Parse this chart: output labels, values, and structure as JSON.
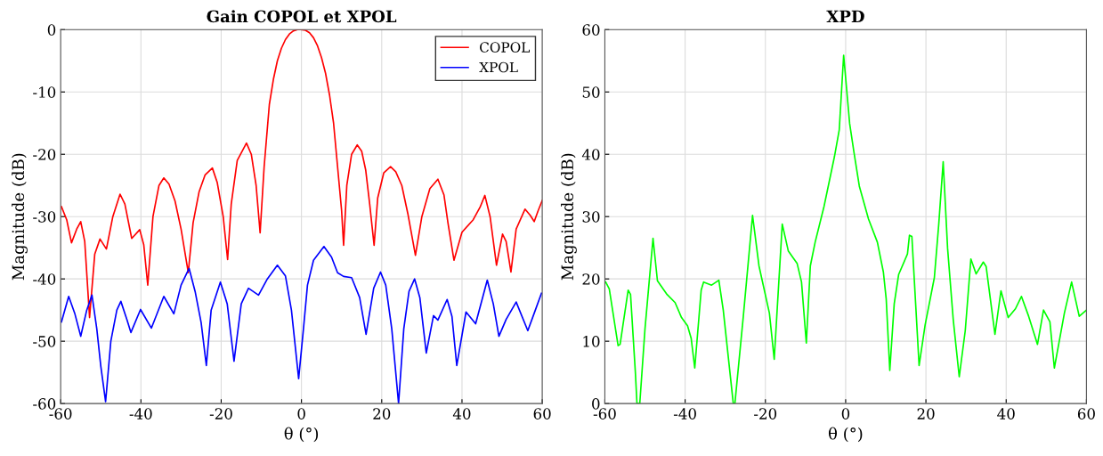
{
  "chart_data": [
    {
      "type": "line",
      "title": "Gain COPOL et XPOL",
      "xlabel": "θ (°)",
      "ylabel": "Magnitude (dB)",
      "xlim": [
        -60,
        60
      ],
      "ylim": [
        -60,
        0
      ],
      "xticks": [
        -60,
        -40,
        -20,
        0,
        20,
        40,
        60
      ],
      "yticks": [
        -60,
        -50,
        -40,
        -30,
        -20,
        -10,
        0
      ],
      "grid": true,
      "legend": "top right",
      "series": [
        {
          "name": "COPOL",
          "color": "#ff0000",
          "x": [
            -59.8,
            -58.5,
            -57.3,
            -56,
            -55,
            -54,
            -52.8,
            -51.5,
            -50.2,
            -48.6,
            -47,
            -45.2,
            -44,
            -42.3,
            -40.3,
            -39.3,
            -38.3,
            -37,
            -35.5,
            -34.3,
            -33,
            -31.5,
            -30,
            -28.2,
            -27,
            -25.5,
            -24,
            -22.2,
            -21,
            -19.5,
            -18.4,
            -17.5,
            -16,
            -13.7,
            -12.5,
            -11.3,
            -10.3,
            -9.3,
            -8,
            -7,
            -6,
            -5,
            -4,
            -3,
            -2,
            -1,
            -0.2,
            1,
            2,
            3,
            4,
            5,
            6,
            7,
            8,
            9,
            10,
            10.5,
            11.3,
            12.5,
            13.9,
            15,
            16,
            17,
            18.1,
            19,
            20.5,
            22.2,
            23.5,
            25,
            26.5,
            28.4,
            30,
            32,
            34,
            35.5,
            36.5,
            38,
            40,
            42.8,
            44.5,
            45.7,
            47,
            48.6,
            50.1,
            51,
            52.2,
            53.5,
            55.7,
            57,
            58,
            59,
            60
          ],
          "values": [
            -28.4,
            -30.5,
            -34.2,
            -32,
            -30.8,
            -34,
            -46.2,
            -36,
            -33.6,
            -35.2,
            -30,
            -26.4,
            -28,
            -33.5,
            -32.1,
            -34.5,
            -41,
            -30,
            -25,
            -23.8,
            -24.8,
            -27.5,
            -32,
            -39,
            -31,
            -26,
            -23.3,
            -22.2,
            -24.5,
            -30,
            -36.9,
            -28,
            -21,
            -18.2,
            -20,
            -25,
            -32.6,
            -22,
            -12,
            -8,
            -5,
            -3,
            -1.6,
            -0.7,
            -0.2,
            0,
            0,
            -0.1,
            -0.5,
            -1.3,
            -2.6,
            -4.5,
            -7,
            -10.5,
            -15,
            -22,
            -29,
            -34.6,
            -25,
            -20,
            -18.5,
            -19.5,
            -22.5,
            -28,
            -34.6,
            -27,
            -23,
            -22,
            -22.8,
            -25,
            -29.5,
            -36.2,
            -30,
            -25.5,
            -24,
            -26.5,
            -31,
            -37,
            -32.5,
            -30.5,
            -28.5,
            -26.6,
            -30,
            -37.8,
            -32.8,
            -34,
            -38.9,
            -32,
            -28.8,
            -29.8,
            -30.8,
            -29,
            -27.4
          ]
        },
        {
          "name": "XPOL",
          "color": "#0000ff",
          "x": [
            -59.8,
            -58,
            -56.5,
            -55,
            -53.5,
            -52.2,
            -51,
            -50,
            -48.8,
            -47.5,
            -46,
            -45,
            -43.5,
            -42.5,
            -40.1,
            -37.4,
            -34.3,
            -31.8,
            -30,
            -28,
            -26.5,
            -25,
            -23.7,
            -22.5,
            -20.2,
            -18.5,
            -16.8,
            -15,
            -13.2,
            -10.7,
            -8.5,
            -6,
            -4,
            -2.5,
            -0.7,
            0.5,
            1.5,
            3,
            5.6,
            7.5,
            9,
            10.5,
            12.5,
            14.5,
            16.1,
            18,
            19.7,
            21,
            22.5,
            24.2,
            25.5,
            26.8,
            28.2,
            29.5,
            31.1,
            32.9,
            34,
            36.3,
            37.5,
            38.7,
            41,
            43.4,
            46.3,
            47.8,
            49.2,
            51,
            53.5,
            56.4,
            58,
            59.8
          ],
          "values": [
            -46.9,
            -42.8,
            -45.5,
            -49.2,
            -45,
            -42.6,
            -48,
            -54,
            -59.7,
            -50,
            -45,
            -43.6,
            -46.5,
            -48.6,
            -44.9,
            -47.9,
            -42.8,
            -45.6,
            -41,
            -38.3,
            -42,
            -47,
            -53.9,
            -45,
            -40.5,
            -44,
            -53.2,
            -44,
            -41.5,
            -42.6,
            -40,
            -37.8,
            -39.5,
            -45,
            -56,
            -48,
            -41,
            -37,
            -34.8,
            -36.5,
            -39,
            -39.6,
            -39.8,
            -43,
            -48.9,
            -41.5,
            -38.9,
            -41,
            -48,
            -60,
            -48,
            -42,
            -40,
            -43,
            -51.9,
            -45.9,
            -46.6,
            -43.3,
            -46,
            -53.9,
            -45.3,
            -47.2,
            -40.2,
            -44,
            -49.2,
            -46.5,
            -43.7,
            -48.3,
            -45.5,
            -42.3
          ]
        }
      ]
    },
    {
      "type": "line",
      "title": "XPD",
      "xlabel": "θ (°)",
      "ylabel": "Magnitude (dB)",
      "xlim": [
        -60,
        60
      ],
      "ylim": [
        0,
        60
      ],
      "xticks": [
        -60,
        -40,
        -20,
        0,
        20,
        40,
        60
      ],
      "yticks": [
        0,
        10,
        20,
        30,
        40,
        50,
        60
      ],
      "grid": true,
      "series": [
        {
          "color": "#00ff00",
          "x": [
            -59.8,
            -58.9,
            -56.7,
            -56.2,
            -54.2,
            -53.6,
            -52.4,
            -52,
            -51.3,
            -50,
            -48,
            -46.9,
            -44.5,
            -42.5,
            -40.9,
            -39.4,
            -38.5,
            -37.6,
            -36,
            -35.4,
            -33.4,
            -31.6,
            -30.5,
            -28,
            -27.6,
            -25.5,
            -23.2,
            -21.6,
            -19,
            -17.8,
            -15.8,
            -14.3,
            -12.1,
            -11,
            -9.8,
            -8.8,
            -7.6,
            -5.4,
            -2.8,
            -1.6,
            -0.5,
            1,
            2.1,
            3.4,
            5.7,
            7.9,
            9.4,
            10.1,
            11,
            12.1,
            13.2,
            15.4,
            15.9,
            16.5,
            18.3,
            19.8,
            22.1,
            23.2,
            24.3,
            25.4,
            26.8,
            28.3,
            29.8,
            31.2,
            32.5,
            34.3,
            35,
            37.2,
            38.7,
            40.5,
            42.3,
            43.8,
            45.6,
            47.8,
            49.3,
            50.9,
            52,
            54.5,
            56.3,
            58.2,
            60
          ],
          "values": [
            19.5,
            18.4,
            9.3,
            9.5,
            18.2,
            17.5,
            5,
            0,
            0,
            12,
            26.5,
            19.7,
            17.5,
            16.2,
            13.8,
            12.5,
            10.5,
            5.7,
            18.2,
            19.5,
            19,
            19.8,
            15,
            0,
            0,
            14,
            30.2,
            22.1,
            14.5,
            7.1,
            28.8,
            24.5,
            22.5,
            19.5,
            9.7,
            22.1,
            25.9,
            31.6,
            39.6,
            43.9,
            55.9,
            44.9,
            40.2,
            34.9,
            29.6,
            25.9,
            21.1,
            16.8,
            5.3,
            16,
            20.7,
            24,
            27,
            26.8,
            6.1,
            12.6,
            20.2,
            28.8,
            38.8,
            24.9,
            13.5,
            4.3,
            11.7,
            23.2,
            20.8,
            22.7,
            22,
            11.1,
            18.1,
            13.8,
            15.2,
            17.2,
            14,
            9.5,
            15,
            13.1,
            5.7,
            14.5,
            19.5,
            14,
            15
          ]
        }
      ]
    }
  ]
}
